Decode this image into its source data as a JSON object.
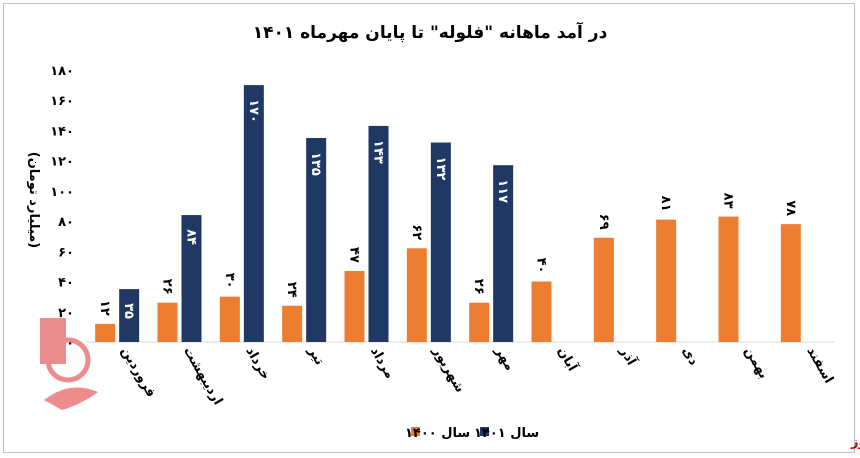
{
  "chart_data": {
    "type": "bar",
    "title": "در آمد ماهانه \"فلوله\" تا پایان مهرماه ۱۴۰۱",
    "ylabel": "(میلیارد تومان)",
    "xlabel": "",
    "ylim": [
      0,
      180
    ],
    "yticks": [
      "۰",
      "۲۰",
      "۴۰",
      "۶۰",
      "۸۰",
      "۱۰۰",
      "۱۲۰",
      "۱۴۰",
      "۱۶۰",
      "۱۸۰"
    ],
    "ytick_values": [
      0,
      20,
      40,
      60,
      80,
      100,
      120,
      140,
      160,
      180
    ],
    "categories": [
      "فروردین",
      "اردیبهشت",
      "خرداد",
      "تیر",
      "مرداد",
      "شهریور",
      "مهر",
      "آبان",
      "آذر",
      "دی",
      "بهمن",
      "اسفند"
    ],
    "series": [
      {
        "name": "سال ۱۴۰۰",
        "color": "#ed7d31",
        "values": [
          12,
          26,
          30,
          24,
          47,
          62,
          26,
          40,
          69,
          81,
          83,
          78
        ],
        "labels": [
          "۱۲",
          "۲۶",
          "۳۰",
          "۲۴",
          "۴۷",
          "۶۲",
          "۲۶",
          "۴۰",
          "۶۹",
          "۸۱",
          "۸۳",
          "۷۸"
        ]
      },
      {
        "name": "سال ۱۴۰۱",
        "color": "#203864",
        "values": [
          35,
          84,
          170,
          135,
          143,
          132,
          117,
          null,
          null,
          null,
          null,
          null
        ],
        "labels": [
          "۳۵",
          "۸۴",
          "۱۷۰",
          "۱۳۵",
          "۱۴۳",
          "۱۳۲",
          "۱۱۷",
          null,
          null,
          null,
          null,
          null
        ]
      }
    ],
    "grid": false,
    "legend_position": "bottom"
  },
  "source": "بورس نیوز"
}
